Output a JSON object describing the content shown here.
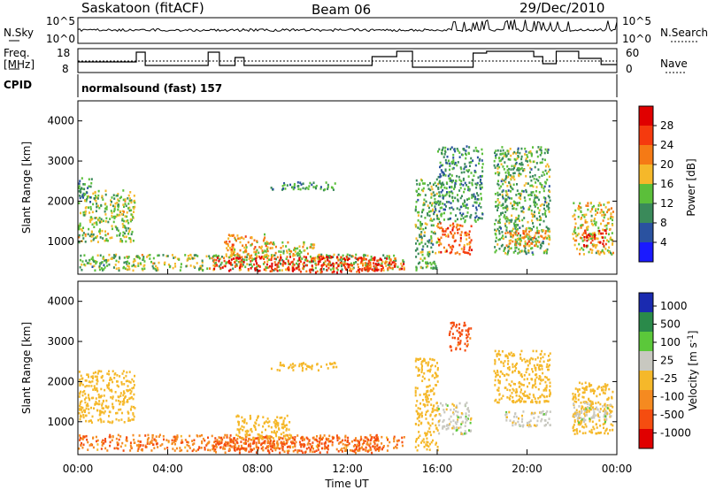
{
  "header": {
    "station": "Saskatoon (fitACF)",
    "beam": "Beam 06",
    "date": "29/Dec/2010"
  },
  "nsky_panel": {
    "label": "N.Sky",
    "right_label": "N.Search",
    "left_ticks": [
      "10^5",
      "10^0"
    ],
    "right_ticks": [
      "10^5",
      "10^0"
    ]
  },
  "freq_panel": {
    "label_line1": "Freq.",
    "label_line2": "[MHz]",
    "left_ticks": [
      "18",
      "8"
    ],
    "right_label": "Nave",
    "right_ticks": [
      "60",
      "0"
    ]
  },
  "cpid": {
    "label": "CPID",
    "value": "normalsound (fast) 157"
  },
  "axes": {
    "ylabel": "Slant Range [km]",
    "xlabel": "Time UT",
    "y_ticks": [
      "1000",
      "2000",
      "3000",
      "4000"
    ],
    "x_ticks": [
      "00:00",
      "04:00",
      "08:00",
      "12:00",
      "16:00",
      "20:00",
      "00:00"
    ]
  },
  "colors": {
    "power": [
      "#1a1aff",
      "#2a52a0",
      "#3a8a5a",
      "#5bbf3a",
      "#f5b82a",
      "#f57a15",
      "#f53a0e",
      "#e00000"
    ],
    "velocity": [
      "#e00000",
      "#f54d10",
      "#f58a20",
      "#f5b82a",
      "#c8c8c0",
      "#5bc83a",
      "#2a8a4a",
      "#1a2ab0"
    ]
  },
  "chart_data": [
    {
      "type": "heatmap",
      "title": "",
      "xlabel": "",
      "ylabel": "Slant Range [km]",
      "xlim": [
        0,
        24
      ],
      "ylim": [
        180,
        4500
      ],
      "colorbar": {
        "label": "Power [dB]",
        "ticks": [
          "4",
          "8",
          "12",
          "16",
          "20",
          "24",
          "28"
        ],
        "range": [
          0,
          30
        ]
      },
      "patches": [
        {
          "t": [
            0.0,
            2.5
          ],
          "r": [
            1000,
            2300
          ],
          "v": 14
        },
        {
          "t": [
            0.0,
            0.6
          ],
          "r": [
            2000,
            2600
          ],
          "v": 10
        },
        {
          "t": [
            0.0,
            1.2
          ],
          "r": [
            300,
            700
          ],
          "v": 12
        },
        {
          "t": [
            1.0,
            14.5
          ],
          "r": [
            300,
            700
          ],
          "v": 14
        },
        {
          "t": [
            6.0,
            13.5
          ],
          "r": [
            250,
            650
          ],
          "v": 26
        },
        {
          "t": [
            6.5,
            8.5
          ],
          "r": [
            600,
            1200
          ],
          "v": 18
        },
        {
          "t": [
            8.0,
            10.5
          ],
          "r": [
            700,
            1000
          ],
          "v": 16
        },
        {
          "t": [
            8.5,
            11.5
          ],
          "r": [
            2300,
            2500
          ],
          "v": 10
        },
        {
          "t": [
            12.5,
            14.5
          ],
          "r": [
            300,
            600
          ],
          "v": 24
        },
        {
          "t": [
            15.0,
            16.0
          ],
          "r": [
            300,
            2600
          ],
          "v": 12
        },
        {
          "t": [
            16.0,
            17.5
          ],
          "r": [
            700,
            1500
          ],
          "v": 22
        },
        {
          "t": [
            16.0,
            18.0
          ],
          "r": [
            1500,
            3400
          ],
          "v": 10
        },
        {
          "t": [
            18.5,
            21.0
          ],
          "r": [
            700,
            3400
          ],
          "v": 12
        },
        {
          "t": [
            19.0,
            21.0
          ],
          "r": [
            900,
            1300
          ],
          "v": 18
        },
        {
          "t": [
            22.0,
            23.8
          ],
          "r": [
            700,
            2000
          ],
          "v": 16
        },
        {
          "t": [
            22.5,
            23.5
          ],
          "r": [
            900,
            1300
          ],
          "v": 26
        }
      ]
    },
    {
      "type": "heatmap",
      "title": "",
      "xlabel": "Time UT",
      "ylabel": "Slant Range [km]",
      "xlim": [
        0,
        24
      ],
      "ylim": [
        180,
        4500
      ],
      "colorbar": {
        "label": "Velocity [m s-1]",
        "ticks": [
          "1000",
          "500",
          "100",
          "25",
          "-25",
          "-100",
          "-500",
          "-1000"
        ],
        "range": [
          -1000,
          1000
        ]
      },
      "patches": [
        {
          "t": [
            0.0,
            2.5
          ],
          "r": [
            1000,
            2300
          ],
          "v": 0
        },
        {
          "t": [
            0.0,
            14.5
          ],
          "r": [
            300,
            700
          ],
          "v": -80
        },
        {
          "t": [
            6.0,
            13.5
          ],
          "r": [
            250,
            650
          ],
          "v": -120
        },
        {
          "t": [
            7.0,
            9.5
          ],
          "r": [
            600,
            1200
          ],
          "v": 0
        },
        {
          "t": [
            8.5,
            11.5
          ],
          "r": [
            2300,
            2500
          ],
          "v": 0
        },
        {
          "t": [
            15.0,
            16.0
          ],
          "r": [
            300,
            2600
          ],
          "v": 0
        },
        {
          "t": [
            16.0,
            17.5
          ],
          "r": [
            700,
            1500
          ],
          "v": 60
        },
        {
          "t": [
            16.5,
            17.5
          ],
          "r": [
            2800,
            3500
          ],
          "v": -200
        },
        {
          "t": [
            18.5,
            21.0
          ],
          "r": [
            1500,
            2800
          ],
          "v": 0
        },
        {
          "t": [
            19.0,
            21.0
          ],
          "r": [
            900,
            1300
          ],
          "v": 60
        },
        {
          "t": [
            22.0,
            23.8
          ],
          "r": [
            700,
            2000
          ],
          "v": 0
        },
        {
          "t": [
            22.0,
            23.8
          ],
          "r": [
            1000,
            1500
          ],
          "v": 60
        }
      ]
    }
  ]
}
